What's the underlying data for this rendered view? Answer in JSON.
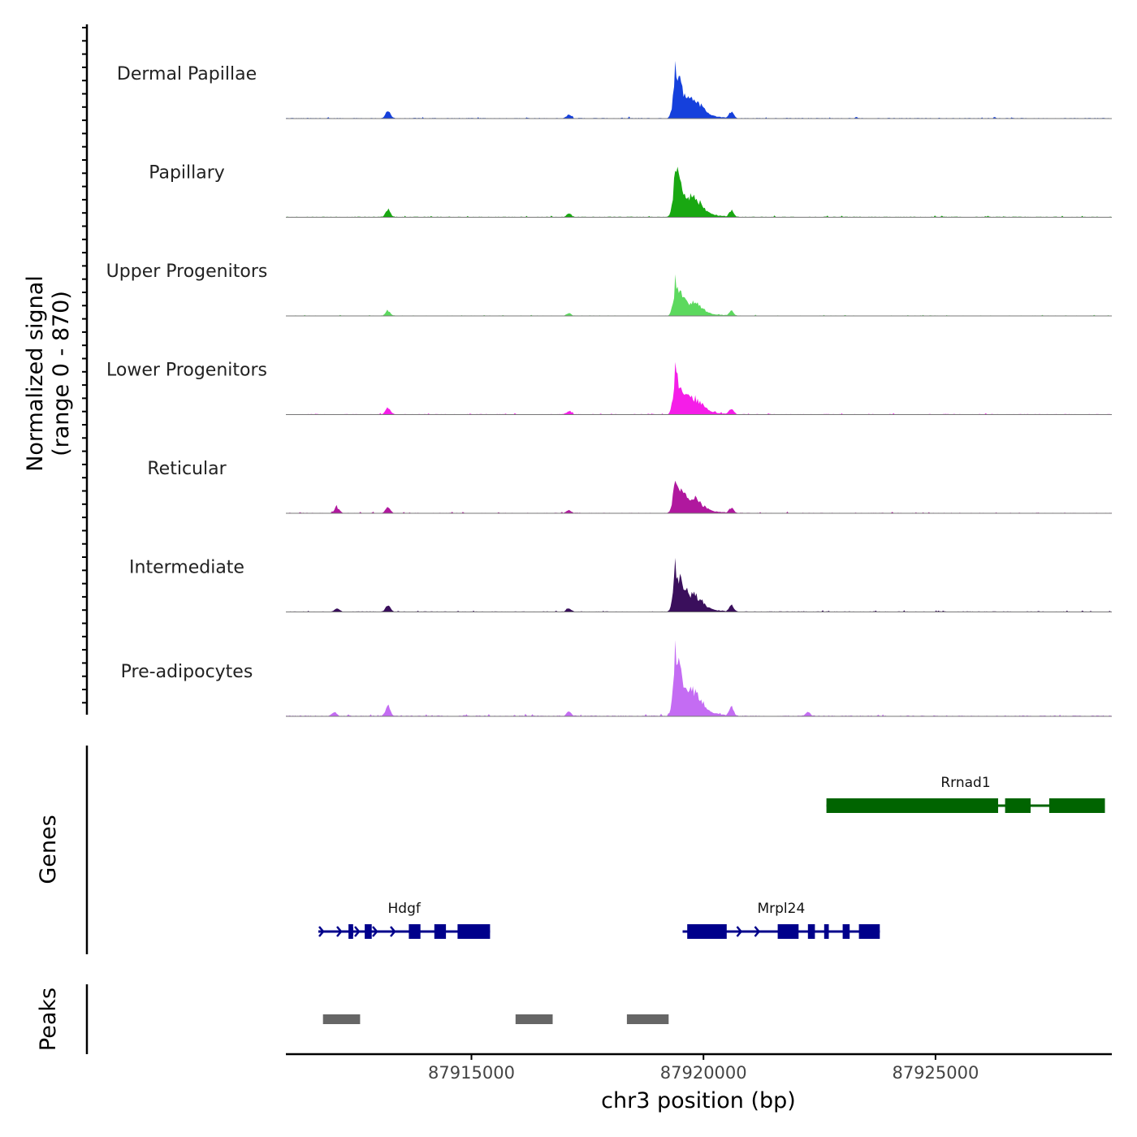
{
  "chart_data": {
    "type": "area",
    "locus": {
      "chrom": "chr3",
      "start": 87911000,
      "end": 87928800
    },
    "y_axis": {
      "label_line1": "Normalized signal",
      "label_line2": "(range 0 - 870)",
      "range": [
        0,
        870
      ]
    },
    "x_axis": {
      "label": "chr3 position (bp)",
      "ticks": [
        87915000,
        87920000,
        87925000
      ],
      "tick_labels": [
        "87915000",
        "87920000",
        "87925000"
      ]
    },
    "common_peaks": [
      {
        "pos": 87913200,
        "rel": 0.13
      },
      {
        "pos": 87917100,
        "rel": 0.06
      },
      {
        "pos": 87920600,
        "rel": 0.12
      }
    ],
    "tracks": [
      {
        "name": "Dermal Papillae",
        "color": "#1540dc",
        "max": 760,
        "side": [
          {
            "pos": 87913250,
            "rel": 0.03
          }
        ]
      },
      {
        "name": "Papillary",
        "color": "#19a812",
        "max": 740,
        "side": [
          {
            "pos": 87913250,
            "rel": 0.02
          }
        ]
      },
      {
        "name": "Upper Progenitors",
        "color": "#5cd95e",
        "max": 500,
        "side": [
          {
            "pos": 87913250,
            "rel": 0.03
          }
        ]
      },
      {
        "name": "Lower Progenitors",
        "color": "#f51de8",
        "max": 640,
        "side": [
          {
            "pos": 87913250,
            "rel": 0.04
          }
        ]
      },
      {
        "name": "Reticular",
        "color": "#b0189e",
        "max": 590,
        "side": [
          {
            "pos": 87912100,
            "rel": 0.13
          }
        ]
      },
      {
        "name": "Intermediate",
        "color": "#3a0f5c",
        "max": 670,
        "side": [
          {
            "pos": 87912100,
            "rel": 0.06
          }
        ]
      },
      {
        "name": "Pre-adipocytes",
        "color": "#c46cf3",
        "max": 940,
        "side": [
          {
            "pos": 87912050,
            "rel": 0.05
          },
          {
            "pos": 87922250,
            "rel": 0.05
          }
        ]
      }
    ],
    "genes_label": "Genes",
    "genes": [
      {
        "name": "Rrnad1",
        "strand": "-",
        "color": "#006400",
        "row": 0,
        "start": 87922650,
        "end": 87928650,
        "exons": [
          [
            87922650,
            87926350
          ],
          [
            87926500,
            87927050
          ],
          [
            87927450,
            87928650
          ]
        ],
        "utr": []
      },
      {
        "name": "Hdgf",
        "strand": "+",
        "color": "#00008b",
        "row": 1,
        "start": 87911700,
        "end": 87915400,
        "exons": [
          [
            87912350,
            87912450
          ],
          [
            87912700,
            87912850
          ],
          [
            87913650,
            87913900
          ],
          [
            87914200,
            87914450
          ],
          [
            87914700,
            87915400
          ]
        ],
        "utr": [
          [
            87912400,
            87912450
          ]
        ]
      },
      {
        "name": "Mrpl24",
        "strand": "+",
        "color": "#00008b",
        "row": 1,
        "start": 87919550,
        "end": 87923800,
        "exons": [
          [
            87919650,
            87920500
          ],
          [
            87921600,
            87922050
          ],
          [
            87922250,
            87922400
          ],
          [
            87922600,
            87922700
          ],
          [
            87923000,
            87923150
          ],
          [
            87923350,
            87923800
          ]
        ],
        "utr": []
      }
    ],
    "peaks_label": "Peaks",
    "peaks": [
      [
        87911800,
        87912600
      ],
      [
        87915950,
        87916750
      ],
      [
        87918350,
        87919250
      ]
    ]
  }
}
